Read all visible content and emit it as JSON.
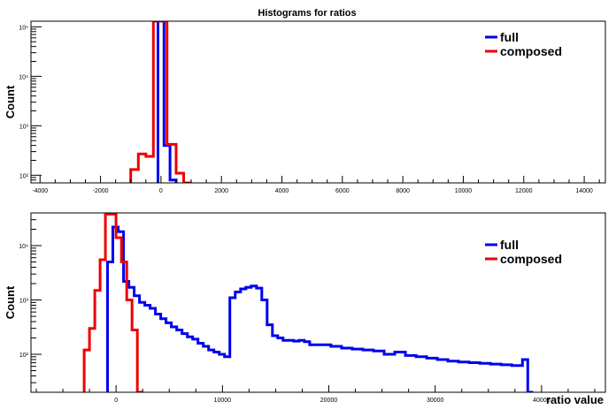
{
  "chart_data": [
    {
      "type": "step",
      "title": "Histograms for ratios",
      "xlabel": "",
      "ylabel": "Count",
      "log_y": true,
      "xlim": [
        -4300,
        14700
      ],
      "ylim": [
        70,
        130000
      ],
      "x_ticks": [
        -4000,
        -2000,
        0,
        2000,
        4000,
        6000,
        8000,
        10000,
        12000,
        14000
      ],
      "y_ticks": [
        {
          "value": 100,
          "label": "10²"
        },
        {
          "value": 1000,
          "label": "10³"
        },
        {
          "value": 10000,
          "label": "10⁴"
        },
        {
          "value": 100000,
          "label": "10⁵"
        }
      ],
      "grid": false,
      "legend_position": "top-right",
      "series": [
        {
          "name": "full",
          "color": "#0000ee",
          "edges": [
            -100,
            100,
            300,
            500
          ],
          "values": [
            130000,
            400,
            80
          ]
        },
        {
          "name": "composed",
          "color": "#ee0000",
          "edges": [
            -1000,
            -750,
            -500,
            -250,
            -100,
            200,
            500,
            750,
            1000
          ],
          "values": [
            130,
            270,
            240,
            130000,
            130000,
            420,
            110,
            60
          ]
        }
      ]
    },
    {
      "type": "step",
      "title": "",
      "xlabel": "ratio value",
      "ylabel": "Count",
      "log_y": true,
      "xlim": [
        -8000,
        46000
      ],
      "ylim": [
        20,
        40000
      ],
      "x_ticks": [
        0,
        10000,
        20000,
        30000,
        40000
      ],
      "y_ticks": [
        {
          "value": 100,
          "label": "10²"
        },
        {
          "value": 1000,
          "label": "10³"
        },
        {
          "value": 10000,
          "label": "10⁴"
        }
      ],
      "grid": false,
      "legend_position": "top-right",
      "series": [
        {
          "name": "full",
          "color": "#0000ee",
          "edges": [
            -800,
            -300,
            200,
            700,
            1200,
            1700,
            2200,
            2700,
            3200,
            3700,
            4200,
            4700,
            5200,
            5700,
            6200,
            6700,
            7200,
            7700,
            8200,
            8700,
            9200,
            9700,
            10200,
            10700,
            11200,
            11700,
            12200,
            12700,
            13200,
            13700,
            14200,
            14700,
            15200,
            15700,
            16200,
            16700,
            17200,
            17700,
            18200,
            19200,
            20200,
            21200,
            22200,
            23200,
            24200,
            25200,
            26200,
            27200,
            28200,
            29200,
            30200,
            31200,
            32200,
            33200,
            34200,
            35200,
            36200,
            37200,
            38200,
            38700,
            39200
          ],
          "values": [
            5000,
            22000,
            18000,
            2200,
            1700,
            1200,
            900,
            800,
            700,
            550,
            450,
            380,
            320,
            280,
            240,
            210,
            190,
            160,
            140,
            120,
            110,
            100,
            90,
            1100,
            1400,
            1600,
            1700,
            1800,
            1650,
            1000,
            350,
            220,
            200,
            180,
            180,
            175,
            180,
            170,
            150,
            150,
            140,
            130,
            125,
            120,
            115,
            100,
            110,
            95,
            90,
            85,
            80,
            75,
            72,
            70,
            68,
            66,
            64,
            62,
            80,
            20
          ]
        },
        {
          "name": "composed",
          "color": "#ee0000",
          "edges": [
            -3000,
            -2500,
            -2000,
            -1500,
            -1000,
            -500,
            0,
            500,
            1000,
            1500,
            2000,
            2500
          ],
          "values": [
            120,
            300,
            1500,
            5500,
            38000,
            38000,
            14000,
            5000,
            1000,
            280,
            20
          ]
        }
      ]
    }
  ]
}
